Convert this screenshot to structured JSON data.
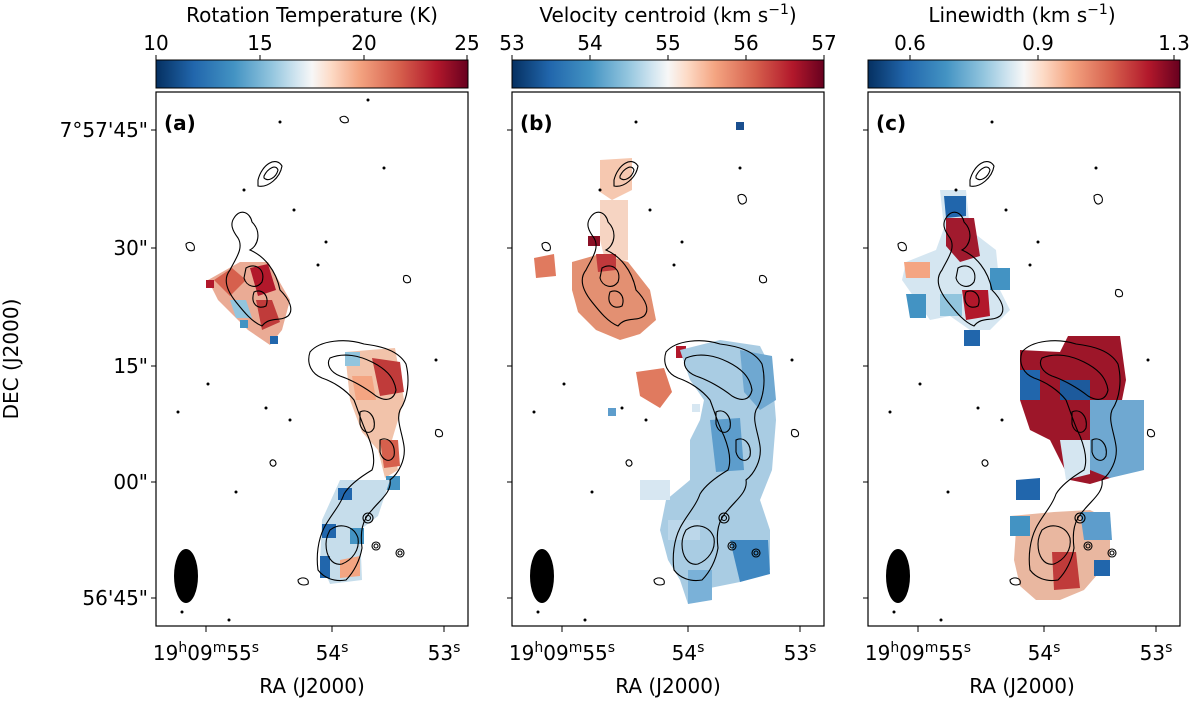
{
  "chart_data": [
    {
      "type": "heatmap",
      "panel_label": "(a)",
      "colorbar": {
        "label": "Rotation Temperature (K)",
        "range": [
          10,
          25
        ],
        "ticks": [
          10,
          15,
          20,
          25
        ],
        "tick_labels": [
          "10",
          "15",
          "20",
          "25"
        ],
        "cmap": "RdBu_r"
      },
      "xlabel": "RA (J2000)",
      "ylabel": "DEC (J2000)",
      "x_ticks": [
        "19h09m55s",
        "54s",
        "53s"
      ],
      "y_ticks": [
        "7°57'45\"",
        "30\"",
        "15\"",
        "00\"",
        "56'45\""
      ]
    },
    {
      "type": "heatmap",
      "panel_label": "(b)",
      "colorbar": {
        "label": "Velocity centroid (km s−1)",
        "range": [
          53,
          57
        ],
        "ticks": [
          53,
          54,
          55,
          56,
          57
        ],
        "tick_labels": [
          "53",
          "54",
          "55",
          "56",
          "57"
        ],
        "cmap": "RdBu_r"
      },
      "xlabel": "RA (J2000)",
      "x_ticks": [
        "19h09m55s",
        "54s",
        "53s"
      ]
    },
    {
      "type": "heatmap",
      "panel_label": "(c)",
      "colorbar": {
        "label": "Linewidth (km s−1)",
        "range": [
          0.6,
          1.3
        ],
        "ticks": [
          0.6,
          0.9,
          1.3
        ],
        "tick_labels": [
          "0.6",
          "0.9",
          "1.3"
        ],
        "cmap": "RdBu_r"
      },
      "xlabel": "RA (J2000)",
      "x_ticks": [
        "19h09m55s",
        "54s",
        "53s"
      ]
    }
  ]
}
